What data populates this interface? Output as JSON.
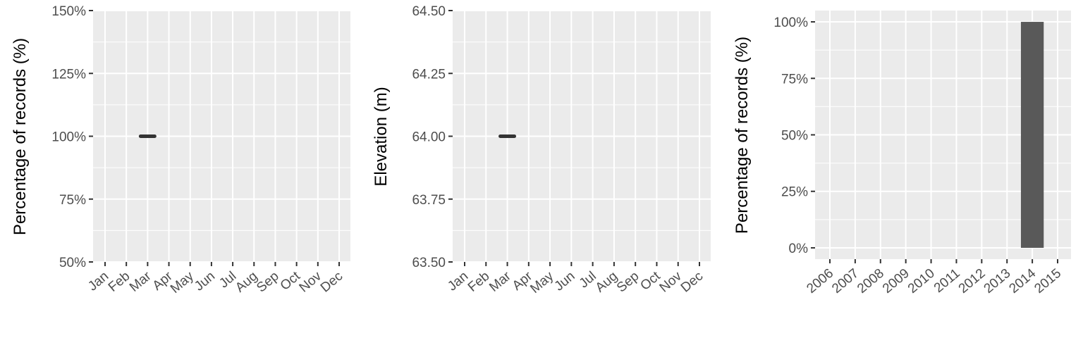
{
  "chart_data": [
    {
      "type": "line",
      "ylabel": "Percentage of records (%)",
      "xlabel": "",
      "categories": [
        "Jan",
        "Feb",
        "Mar",
        "Apr",
        "May",
        "Jun",
        "Jul",
        "Aug",
        "Sep",
        "Oct",
        "Nov",
        "Dec"
      ],
      "yticks": [
        50,
        75,
        100,
        125,
        150
      ],
      "ytick_labels": [
        "50%",
        "75%",
        "100%",
        "125%",
        "150%"
      ],
      "ylim": [
        50,
        150
      ],
      "grid": true,
      "series": [
        {
          "points": [
            {
              "x": "Mar",
              "y": 100
            }
          ]
        }
      ]
    },
    {
      "type": "line",
      "ylabel": "Elevation (m)",
      "xlabel": "",
      "categories": [
        "Jan",
        "Feb",
        "Mar",
        "Apr",
        "May",
        "Jun",
        "Jul",
        "Aug",
        "Sep",
        "Oct",
        "Nov",
        "Dec"
      ],
      "yticks": [
        63.5,
        63.75,
        64.0,
        64.25,
        64.5
      ],
      "ytick_labels": [
        "63.50",
        "63.75",
        "64.00",
        "64.25",
        "64.50"
      ],
      "ylim": [
        63.5,
        64.5
      ],
      "grid": true,
      "series": [
        {
          "points": [
            {
              "x": "Mar",
              "y": 64.0
            }
          ]
        }
      ]
    },
    {
      "type": "bar",
      "ylabel": "Percentage of records (%)",
      "xlabel": "",
      "categories": [
        "2006",
        "2007",
        "2008",
        "2009",
        "2010",
        "2011",
        "2012",
        "2013",
        "2014",
        "2015"
      ],
      "values": [
        0,
        0,
        0,
        0,
        0,
        0,
        0,
        0,
        100,
        0
      ],
      "yticks": [
        0,
        25,
        50,
        75,
        100
      ],
      "ytick_labels": [
        "0%",
        "25%",
        "50%",
        "75%",
        "100%"
      ],
      "ylim": [
        -5,
        105
      ],
      "grid": true,
      "bar_color": "#595959"
    }
  ]
}
